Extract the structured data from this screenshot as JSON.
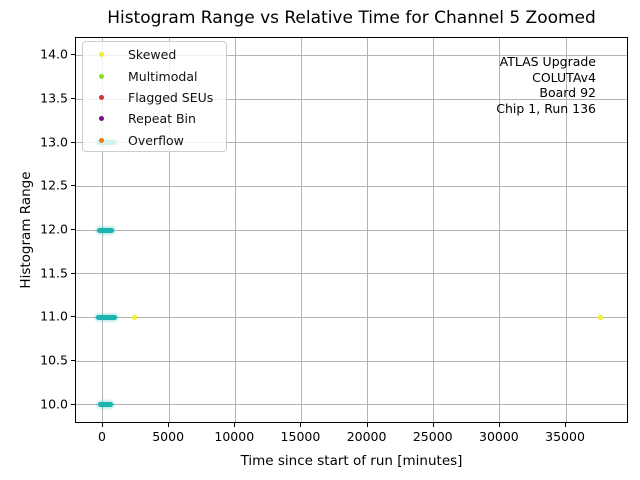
{
  "chart_data": {
    "type": "scatter",
    "title": "Histogram Range vs Relative Time for Channel 5 Zoomed",
    "xlabel": "Time since start of run [minutes]",
    "ylabel": "Histogram Range",
    "xlim": [
      -2040,
      39760
    ],
    "ylim": [
      9.78,
      14.2
    ],
    "xticks": [
      0,
      5000,
      10000,
      15000,
      20000,
      25000,
      30000,
      35000
    ],
    "xtick_labels": [
      "0",
      "5000",
      "10000",
      "15000",
      "20000",
      "25000",
      "30000",
      "35000"
    ],
    "yticks": [
      10.0,
      10.5,
      11.0,
      11.5,
      12.0,
      12.5,
      13.0,
      13.5,
      14.0
    ],
    "ytick_labels": [
      "10.0",
      "10.5",
      "11.0",
      "11.5",
      "12.0",
      "12.5",
      "13.0",
      "13.5",
      "14.0"
    ],
    "grid": true,
    "legend_position": "upper-left",
    "legend_entries": [
      {
        "label": "Skewed",
        "color": "#f2ef2f"
      },
      {
        "label": "Multimodal",
        "color": "#85e21f"
      },
      {
        "label": "Flagged SEUs",
        "color": "#cc3333"
      },
      {
        "label": "Repeat Bin",
        "color": "#7c0a87"
      },
      {
        "label": "Overflow",
        "color": "#ee7d18"
      }
    ],
    "series": [
      {
        "name": "Skewed",
        "color": "#f2ef2f",
        "points": [
          [
            2400,
            11.0
          ],
          [
            37640,
            11.0
          ]
        ]
      },
      {
        "name": "Multimodal",
        "color": "#85e21f",
        "points": []
      },
      {
        "name": "Flagged SEUs",
        "color": "#cc3333",
        "points": []
      },
      {
        "name": "Repeat Bin",
        "color": "#7c0a87",
        "points": []
      },
      {
        "name": "Overflow",
        "color": "#ee7d18",
        "points": []
      }
    ],
    "unlabeled_teal_clusters": {
      "color": "#1ab5b0",
      "halo_color": "#bfe8e8",
      "clusters": [
        {
          "y": 13.0,
          "x_start": -300,
          "x_end": 780
        },
        {
          "y": 12.0,
          "x_start": -265,
          "x_end": 640
        },
        {
          "y": 11.0,
          "x_start": -350,
          "x_end": 900
        },
        {
          "y": 10.0,
          "x_start": -200,
          "x_end": 550
        }
      ]
    },
    "annotation_lines": [
      "ATLAS Upgrade",
      "COLUTAv4",
      "Board 92",
      "Chip 1, Run 136"
    ]
  }
}
